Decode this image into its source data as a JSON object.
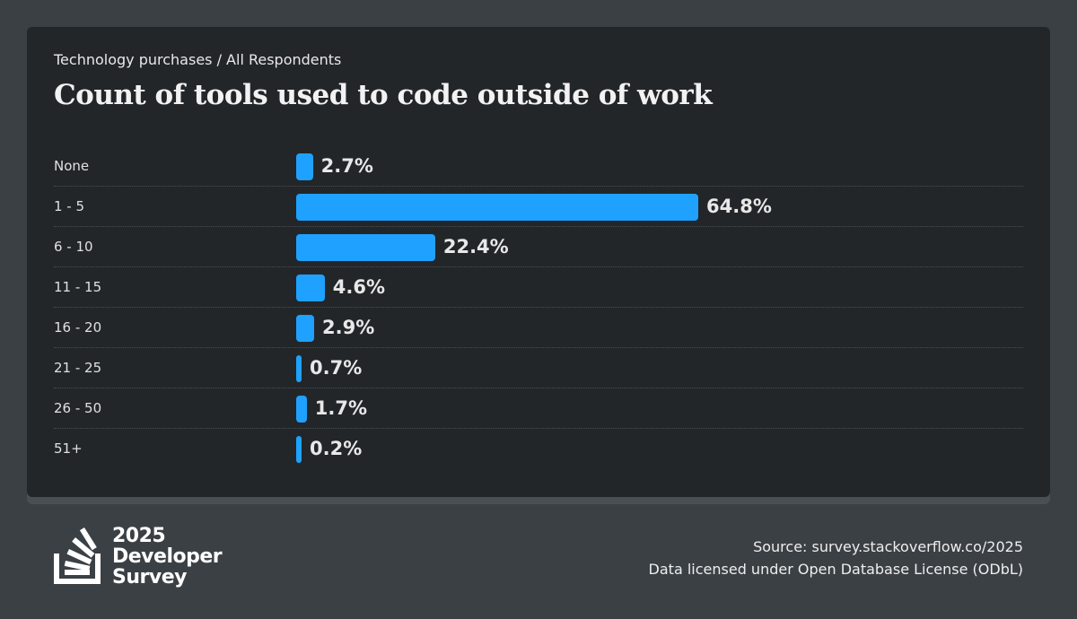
{
  "breadcrumb": "Technology purchases / All Respondents",
  "chart_data": {
    "type": "bar",
    "orientation": "horizontal",
    "title": "Count of tools used to code outside of work",
    "categories": [
      "None",
      "1 - 5",
      "6 - 10",
      "11 - 15",
      "16 - 20",
      "21 - 25",
      "26 - 50",
      "51+"
    ],
    "values": [
      2.7,
      64.8,
      22.4,
      4.6,
      2.9,
      0.7,
      1.7,
      0.2
    ],
    "value_labels": [
      "2.7%",
      "64.8%",
      "22.4%",
      "4.6%",
      "2.9%",
      "0.7%",
      "1.7%",
      "0.2%"
    ],
    "unit": "%",
    "color": "#1ea1ff"
  },
  "logo": {
    "line1": "2025",
    "line2": "Developer",
    "line3": "Survey"
  },
  "source": {
    "line1": "Source: survey.stackoverflow.co/2025",
    "line2": "Data licensed under Open Database License (ODbL)"
  }
}
